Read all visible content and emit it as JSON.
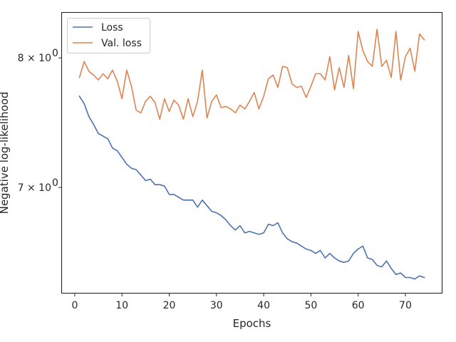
{
  "chart_data": {
    "type": "line",
    "xlabel": "Epochs",
    "ylabel": "Negative log-likelihood",
    "yscale": "log",
    "xlim": [
      -2.7,
      77.7
    ],
    "ylim": [
      6.28,
      8.38
    ],
    "x_ticks": [
      0,
      10,
      20,
      30,
      40,
      50,
      60,
      70
    ],
    "x_tick_labels": [
      "0",
      "10",
      "20",
      "30",
      "40",
      "50",
      "60",
      "70"
    ],
    "y_ticks": [
      7,
      8
    ],
    "y_tick_labels": [
      "7 × 10",
      "8 × 10"
    ],
    "y_tick_exponent": "0",
    "legend": {
      "placement": "upper-left",
      "entries": [
        "Loss",
        "Val. loss"
      ]
    },
    "grid": false,
    "series": [
      {
        "name": "Loss",
        "color": "#4c72b0",
        "x": [
          1,
          2,
          3,
          4,
          5,
          6,
          7,
          8,
          9,
          10,
          11,
          12,
          13,
          14,
          15,
          16,
          17,
          18,
          19,
          20,
          21,
          22,
          23,
          24,
          25,
          26,
          27,
          28,
          29,
          30,
          31,
          32,
          33,
          34,
          35,
          36,
          37,
          38,
          39,
          40,
          41,
          42,
          43,
          44,
          45,
          46,
          47,
          48,
          49,
          50,
          51,
          52,
          53,
          54,
          55,
          56,
          57,
          58,
          59,
          60,
          61,
          62,
          63,
          64,
          65,
          66,
          67,
          68,
          69,
          70,
          71,
          72,
          73,
          74
        ],
        "values": [
          7.69,
          7.63,
          7.53,
          7.47,
          7.4,
          7.38,
          7.36,
          7.29,
          7.27,
          7.22,
          7.17,
          7.14,
          7.13,
          7.09,
          7.05,
          7.06,
          7.02,
          7.02,
          7.01,
          6.95,
          6.95,
          6.93,
          6.91,
          6.91,
          6.91,
          6.86,
          6.91,
          6.87,
          6.83,
          6.82,
          6.8,
          6.77,
          6.73,
          6.7,
          6.73,
          6.68,
          6.69,
          6.68,
          6.67,
          6.68,
          6.74,
          6.73,
          6.75,
          6.68,
          6.64,
          6.62,
          6.61,
          6.59,
          6.57,
          6.56,
          6.54,
          6.56,
          6.51,
          6.54,
          6.51,
          6.49,
          6.48,
          6.49,
          6.54,
          6.57,
          6.59,
          6.51,
          6.5,
          6.46,
          6.45,
          6.49,
          6.44,
          6.4,
          6.41,
          6.38,
          6.38,
          6.37,
          6.39,
          6.38
        ]
      },
      {
        "name": "Val. loss",
        "color": "#dd8452",
        "x": [
          1,
          2,
          3,
          4,
          5,
          6,
          7,
          8,
          9,
          10,
          11,
          12,
          13,
          14,
          15,
          16,
          17,
          18,
          19,
          20,
          21,
          22,
          23,
          24,
          25,
          26,
          27,
          28,
          29,
          30,
          31,
          32,
          33,
          34,
          35,
          36,
          37,
          38,
          39,
          40,
          41,
          42,
          43,
          44,
          45,
          46,
          47,
          48,
          49,
          50,
          51,
          52,
          53,
          54,
          55,
          56,
          57,
          58,
          59,
          60,
          61,
          62,
          63,
          64,
          65,
          66,
          67,
          68,
          69,
          70,
          71,
          72,
          73,
          74
        ],
        "values": [
          7.84,
          7.97,
          7.89,
          7.86,
          7.82,
          7.87,
          7.83,
          7.9,
          7.81,
          7.67,
          7.9,
          7.77,
          7.58,
          7.56,
          7.65,
          7.69,
          7.64,
          7.51,
          7.67,
          7.57,
          7.66,
          7.62,
          7.51,
          7.67,
          7.53,
          7.65,
          7.9,
          7.52,
          7.65,
          7.7,
          7.6,
          7.61,
          7.59,
          7.56,
          7.62,
          7.59,
          7.65,
          7.72,
          7.59,
          7.69,
          7.83,
          7.86,
          7.76,
          7.93,
          7.92,
          7.79,
          7.76,
          7.77,
          7.68,
          7.77,
          7.87,
          7.87,
          7.82,
          8.01,
          7.74,
          7.92,
          7.76,
          8.02,
          7.75,
          8.22,
          8.06,
          7.97,
          7.93,
          8.24,
          7.93,
          7.98,
          7.84,
          8.22,
          7.82,
          8.01,
          8.08,
          7.89,
          8.2,
          8.15
        ]
      }
    ]
  }
}
